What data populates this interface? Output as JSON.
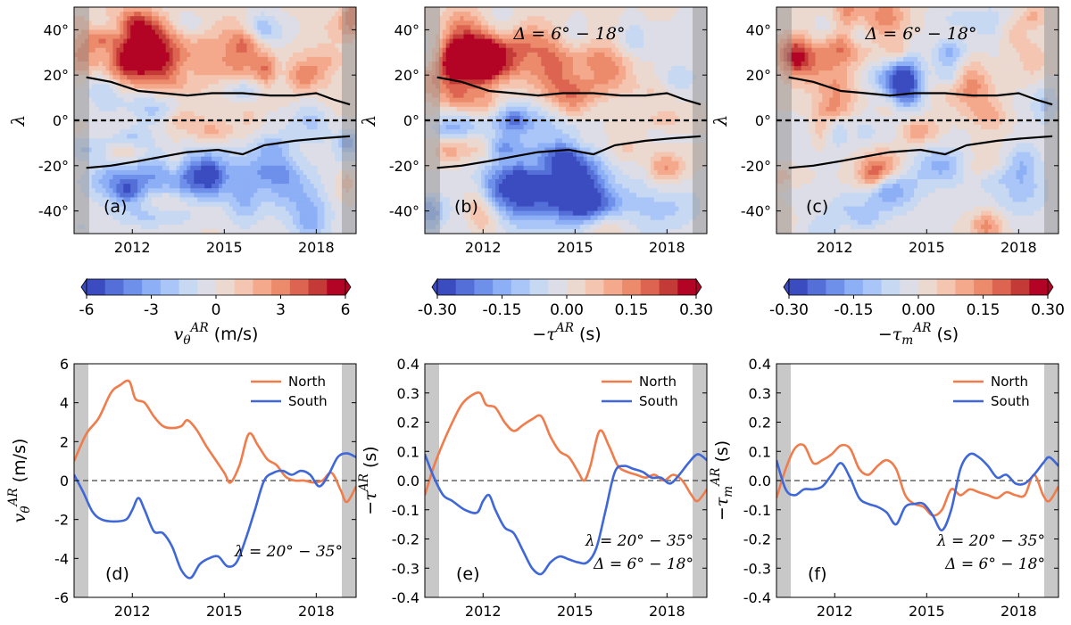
{
  "chart_data": [
    {
      "id": "a",
      "type": "heatmap",
      "panel_label": "(a)",
      "xticks": [
        2012,
        2015,
        2018
      ],
      "xlim": [
        2010.1,
        2019.3
      ],
      "yticks": [
        40,
        20,
        0,
        -20,
        -40
      ],
      "ytick_labels": [
        "40°",
        "20°",
        "0°",
        "-20°",
        "-40°"
      ],
      "ylim": [
        -50,
        50
      ],
      "ylabel": "λ",
      "annotation": "",
      "colorbar": {
        "ticks": [
          "-6",
          "-3",
          "0",
          "3",
          "6"
        ],
        "label": "v_θ^AR (m/s)",
        "levels": 14
      },
      "amp": 6,
      "seed": 11,
      "features": [
        {
          "x": 2011.8,
          "y": 27,
          "v": 5.5,
          "sx": 0.7,
          "sy": 7
        },
        {
          "x": 2013.1,
          "y": 24,
          "v": 3.8,
          "sx": 0.8,
          "sy": 8
        },
        {
          "x": 2015.5,
          "y": 25,
          "v": 2.8,
          "sx": 0.8,
          "sy": 8
        },
        {
          "x": 2011.5,
          "y": 42,
          "v": 2.2,
          "sx": 1.2,
          "sy": 6
        },
        {
          "x": 2014.7,
          "y": -5,
          "v": 2.8,
          "sx": 0.5,
          "sy": 4
        },
        {
          "x": 2012.4,
          "y": 5,
          "v": -2.4,
          "sx": 0.9,
          "sy": 5
        },
        {
          "x": 2013.9,
          "y": -25,
          "v": -5.2,
          "sx": 1.0,
          "sy": 8
        },
        {
          "x": 2011.6,
          "y": -27,
          "v": -3.5,
          "sx": 0.8,
          "sy": 6
        },
        {
          "x": 2016.3,
          "y": -22,
          "v": -2.5,
          "sx": 0.7,
          "sy": 6
        },
        {
          "x": 2017.6,
          "y": -35,
          "v": -2.0,
          "sx": 1.0,
          "sy": 8
        },
        {
          "x": 2012.7,
          "y": -42,
          "v": -2.0,
          "sx": 1.0,
          "sy": 4
        }
      ]
    },
    {
      "id": "b",
      "type": "heatmap",
      "panel_label": "(b)",
      "xticks": [
        2012,
        2015,
        2018
      ],
      "xlim": [
        2010.1,
        2019.3
      ],
      "yticks": [
        40,
        20,
        0,
        -20,
        -40
      ],
      "ytick_labels": [
        "40°",
        "20°",
        "0°",
        "-20°",
        "-40°"
      ],
      "ylim": [
        -50,
        50
      ],
      "ylabel": "λ",
      "annotation": "Δ = 6° − 18°",
      "colorbar": {
        "ticks": [
          "-0.30",
          "-0.15",
          "0.00",
          "0.15",
          "0.30"
        ],
        "label": "−τ^AR (s)",
        "levels": 14
      },
      "amp": 0.3,
      "seed": 23,
      "features": [
        {
          "x": 2011.6,
          "y": 28,
          "v": 0.32,
          "sx": 0.6,
          "sy": 8
        },
        {
          "x": 2012.8,
          "y": 30,
          "v": 0.24,
          "sx": 0.8,
          "sy": 10
        },
        {
          "x": 2014.5,
          "y": 25,
          "v": 0.18,
          "sx": 1.0,
          "sy": 10
        },
        {
          "x": 2016.0,
          "y": 22,
          "v": 0.14,
          "sx": 0.7,
          "sy": 7
        },
        {
          "x": 2013.4,
          "y": -28,
          "v": -0.3,
          "sx": 0.9,
          "sy": 11
        },
        {
          "x": 2015.1,
          "y": -30,
          "v": -0.3,
          "sx": 0.7,
          "sy": 12
        },
        {
          "x": 2012.0,
          "y": -30,
          "v": -0.15,
          "sx": 0.6,
          "sy": 8
        },
        {
          "x": 2013.0,
          "y": 0,
          "v": -0.12,
          "sx": 1.5,
          "sy": 6
        },
        {
          "x": 2017.8,
          "y": -38,
          "v": -0.1,
          "sx": 1.0,
          "sy": 8
        }
      ]
    },
    {
      "id": "c",
      "type": "heatmap",
      "panel_label": "(c)",
      "xticks": [
        2012,
        2015,
        2018
      ],
      "xlim": [
        2010.1,
        2019.3
      ],
      "yticks": [
        40,
        20,
        0,
        -20,
        -40
      ],
      "ytick_labels": [
        "40°",
        "20°",
        "0°",
        "-20°",
        "-40°"
      ],
      "ylim": [
        -50,
        50
      ],
      "ylabel": "λ",
      "annotation": "Δ = 6° − 18°",
      "colorbar": {
        "ticks": [
          "-0.30",
          "-0.15",
          "0.00",
          "0.15",
          "0.30"
        ],
        "label": "−τ_m^AR (s)",
        "levels": 14
      },
      "amp": 0.3,
      "seed": 37,
      "features": [
        {
          "x": 2011.3,
          "y": 25,
          "v": 0.12,
          "sx": 0.8,
          "sy": 8
        },
        {
          "x": 2012.9,
          "y": 30,
          "v": 0.1,
          "sx": 0.6,
          "sy": 6
        },
        {
          "x": 2015.0,
          "y": -5,
          "v": 0.12,
          "sx": 0.4,
          "sy": 4
        },
        {
          "x": 2013.8,
          "y": -30,
          "v": -0.15,
          "sx": 0.7,
          "sy": 8
        },
        {
          "x": 2015.5,
          "y": -20,
          "v": -0.14,
          "sx": 0.6,
          "sy": 6
        },
        {
          "x": 2012.3,
          "y": -5,
          "v": -0.1,
          "sx": 0.9,
          "sy": 5
        },
        {
          "x": 2017.8,
          "y": -33,
          "v": -0.09,
          "sx": 0.9,
          "sy": 8
        }
      ]
    },
    {
      "id": "d",
      "type": "line",
      "panel_label": "(d)",
      "xticks": [
        2012,
        2015,
        2018
      ],
      "xlim": [
        2010.1,
        2019.3
      ],
      "ylim": [
        -6,
        6
      ],
      "yticks": [
        6,
        4,
        2,
        0,
        -2,
        -4,
        -6
      ],
      "ytick_labels": [
        "6",
        "4",
        "2",
        "0",
        "-2",
        "-4",
        "-6"
      ],
      "ylabel": "v_θ^AR (m/s)",
      "annotations": [
        "λ = 20° − 35°"
      ],
      "legend": [
        "North",
        "South"
      ],
      "series": [
        {
          "name": "North",
          "color": "#f07c4c",
          "x": [
            2010.1,
            2010.5,
            2010.9,
            2011.3,
            2011.6,
            2011.9,
            2012.1,
            2012.4,
            2012.7,
            2013.0,
            2013.3,
            2013.6,
            2013.8,
            2014.1,
            2014.4,
            2014.7,
            2015.0,
            2015.2,
            2015.5,
            2015.8,
            2016.1,
            2016.4,
            2016.7,
            2017.0,
            2017.3,
            2017.6,
            2017.9,
            2018.2,
            2018.5,
            2018.8,
            2019.0,
            2019.3
          ],
          "y": [
            1.0,
            2.4,
            3.2,
            4.5,
            4.9,
            5.1,
            4.2,
            4.0,
            3.3,
            2.8,
            2.7,
            2.8,
            3.1,
            2.6,
            1.8,
            1.1,
            0.4,
            -0.1,
            0.8,
            2.4,
            1.8,
            1.1,
            0.8,
            0.2,
            0.0,
            0.0,
            -0.1,
            0.0,
            0.4,
            -0.5,
            -1.1,
            -0.3
          ]
        },
        {
          "name": "South",
          "color": "#3f67d8",
          "x": [
            2010.1,
            2010.4,
            2010.7,
            2011.0,
            2011.4,
            2011.8,
            2012.0,
            2012.2,
            2012.4,
            2012.7,
            2013.0,
            2013.3,
            2013.6,
            2013.9,
            2014.2,
            2014.5,
            2014.8,
            2015.1,
            2015.4,
            2015.7,
            2016.0,
            2016.3,
            2016.6,
            2016.9,
            2017.2,
            2017.5,
            2017.8,
            2018.1,
            2018.4,
            2018.7,
            2019.0,
            2019.3
          ],
          "y": [
            0.3,
            -0.6,
            -1.6,
            -2.0,
            -2.1,
            -2.0,
            -1.5,
            -0.9,
            -1.5,
            -2.6,
            -2.7,
            -3.4,
            -4.6,
            -5.0,
            -4.3,
            -4.0,
            -3.9,
            -4.4,
            -4.2,
            -3.0,
            -1.5,
            0.0,
            0.4,
            0.5,
            0.3,
            0.5,
            0.3,
            -0.3,
            0.3,
            1.2,
            1.4,
            1.2
          ]
        }
      ]
    },
    {
      "id": "e",
      "type": "line",
      "panel_label": "(e)",
      "xticks": [
        2012,
        2015,
        2018
      ],
      "xlim": [
        2010.1,
        2019.3
      ],
      "ylim": [
        -0.4,
        0.4
      ],
      "yticks": [
        0.4,
        0.3,
        0.2,
        0.1,
        0.0,
        -0.1,
        -0.2,
        -0.3,
        -0.4
      ],
      "ytick_labels": [
        "0.4",
        "0.3",
        "0.2",
        "0.1",
        "0.0",
        "-0.1",
        "-0.2",
        "-0.3",
        "-0.4"
      ],
      "ylabel": "−τ^AR (s)",
      "annotations": [
        "λ = 20° − 35°",
        "Δ = 6° − 18°"
      ],
      "legend": [
        "North",
        "South"
      ],
      "series": [
        {
          "name": "North",
          "color": "#f07c4c",
          "x": [
            2010.1,
            2010.4,
            2010.7,
            2011.0,
            2011.3,
            2011.6,
            2011.9,
            2012.1,
            2012.4,
            2012.7,
            2013.0,
            2013.3,
            2013.6,
            2013.9,
            2014.2,
            2014.5,
            2014.8,
            2015.1,
            2015.3,
            2015.5,
            2015.8,
            2016.1,
            2016.4,
            2016.7,
            2017.0,
            2017.3,
            2017.6,
            2017.9,
            2018.2,
            2018.5,
            2018.8,
            2019.0,
            2019.3
          ],
          "y": [
            -0.05,
            0.05,
            0.13,
            0.2,
            0.26,
            0.29,
            0.3,
            0.26,
            0.25,
            0.2,
            0.17,
            0.19,
            0.21,
            0.22,
            0.15,
            0.1,
            0.08,
            0.03,
            0.0,
            0.05,
            0.17,
            0.12,
            0.05,
            0.03,
            0.02,
            0.01,
            0.02,
            0.0,
            0.02,
            0.0,
            -0.05,
            -0.07,
            -0.03
          ]
        },
        {
          "name": "South",
          "color": "#3f67d8",
          "x": [
            2010.1,
            2010.4,
            2010.7,
            2011.0,
            2011.4,
            2011.8,
            2012.0,
            2012.2,
            2012.4,
            2012.7,
            2013.0,
            2013.3,
            2013.6,
            2013.9,
            2014.2,
            2014.5,
            2014.8,
            2015.1,
            2015.4,
            2015.7,
            2016.0,
            2016.3,
            2016.6,
            2016.9,
            2017.2,
            2017.5,
            2017.8,
            2018.1,
            2018.4,
            2018.7,
            2019.0,
            2019.3
          ],
          "y": [
            0.09,
            0.01,
            -0.05,
            -0.07,
            -0.1,
            -0.11,
            -0.07,
            -0.05,
            -0.1,
            -0.16,
            -0.18,
            -0.24,
            -0.3,
            -0.32,
            -0.28,
            -0.26,
            -0.27,
            -0.28,
            -0.28,
            -0.23,
            -0.1,
            0.03,
            0.05,
            0.04,
            0.03,
            0.01,
            0.01,
            -0.01,
            0.02,
            0.06,
            0.09,
            0.07
          ]
        }
      ]
    },
    {
      "id": "f",
      "type": "line",
      "panel_label": "(f)",
      "xticks": [
        2012,
        2015,
        2018
      ],
      "xlim": [
        2010.1,
        2019.3
      ],
      "ylim": [
        -0.4,
        0.4
      ],
      "yticks": [
        0.4,
        0.3,
        0.2,
        0.1,
        0.0,
        -0.1,
        -0.2,
        -0.3,
        -0.4
      ],
      "ytick_labels": [
        "0.4",
        "0.3",
        "0.2",
        "0.1",
        "0.0",
        "-0.1",
        "-0.2",
        "-0.3",
        "-0.4"
      ],
      "ylabel": "−τ_m^AR (s)",
      "annotations": [
        "λ = 20° − 35°",
        "Δ = 6° − 18°"
      ],
      "legend": [
        "North",
        "South"
      ],
      "series": [
        {
          "name": "North",
          "color": "#f07c4c",
          "x": [
            2010.1,
            2010.4,
            2010.7,
            2011.0,
            2011.3,
            2011.6,
            2011.9,
            2012.2,
            2012.5,
            2012.8,
            2013.1,
            2013.4,
            2013.7,
            2014.0,
            2014.3,
            2014.6,
            2014.9,
            2015.2,
            2015.5,
            2015.8,
            2016.1,
            2016.4,
            2016.7,
            2017.0,
            2017.3,
            2017.6,
            2017.9,
            2018.2,
            2018.5,
            2018.8,
            2019.0,
            2019.3
          ],
          "y": [
            -0.06,
            0.04,
            0.11,
            0.12,
            0.06,
            0.07,
            0.09,
            0.12,
            0.11,
            0.04,
            0.02,
            0.05,
            0.07,
            0.04,
            -0.05,
            -0.08,
            -0.09,
            -0.12,
            -0.1,
            -0.03,
            -0.05,
            -0.03,
            -0.04,
            -0.05,
            -0.06,
            -0.04,
            -0.05,
            -0.05,
            0.02,
            -0.05,
            -0.07,
            -0.02
          ]
        },
        {
          "name": "South",
          "color": "#3f67d8",
          "x": [
            2010.1,
            2010.4,
            2010.7,
            2011.0,
            2011.3,
            2011.6,
            2011.9,
            2012.2,
            2012.5,
            2012.8,
            2013.1,
            2013.4,
            2013.7,
            2014.0,
            2014.3,
            2014.6,
            2014.9,
            2015.2,
            2015.5,
            2015.8,
            2016.1,
            2016.4,
            2016.7,
            2017.0,
            2017.3,
            2017.6,
            2017.9,
            2018.2,
            2018.5,
            2018.8,
            2019.0,
            2019.3
          ],
          "y": [
            0.07,
            -0.03,
            -0.05,
            -0.03,
            -0.03,
            -0.02,
            0.02,
            0.06,
            0.01,
            -0.06,
            -0.08,
            -0.09,
            -0.11,
            -0.15,
            -0.09,
            -0.08,
            -0.08,
            -0.12,
            -0.17,
            -0.1,
            0.04,
            0.09,
            0.08,
            0.05,
            0.01,
            0.02,
            -0.01,
            -0.01,
            0.02,
            0.06,
            0.08,
            0.05
          ]
        }
      ]
    }
  ]
}
